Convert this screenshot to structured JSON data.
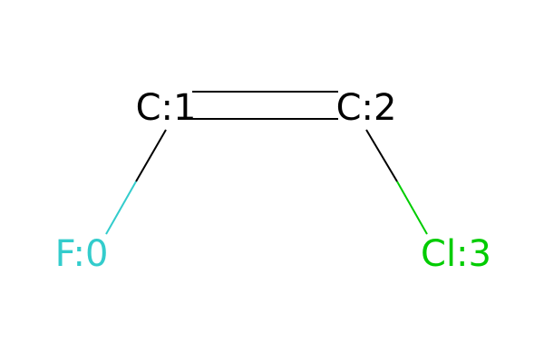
{
  "atoms": [
    {
      "id": "F0",
      "label": "F:0",
      "element": "F"
    },
    {
      "id": "C1",
      "label": "C:1",
      "element": "C"
    },
    {
      "id": "C2",
      "label": "C:2",
      "element": "C"
    },
    {
      "id": "Cl3",
      "label": "Cl:3",
      "element": "Cl"
    }
  ],
  "bonds": [
    {
      "from": "F0",
      "to": "C1",
      "order": 1
    },
    {
      "from": "C1",
      "to": "C2",
      "order": 2
    },
    {
      "from": "C2",
      "to": "Cl3",
      "order": 1
    }
  ],
  "colors": {
    "carbon": "#000000",
    "fluorine": "#33CCCC",
    "chlorine": "#00CC00",
    "background": "#FFFFFF"
  }
}
